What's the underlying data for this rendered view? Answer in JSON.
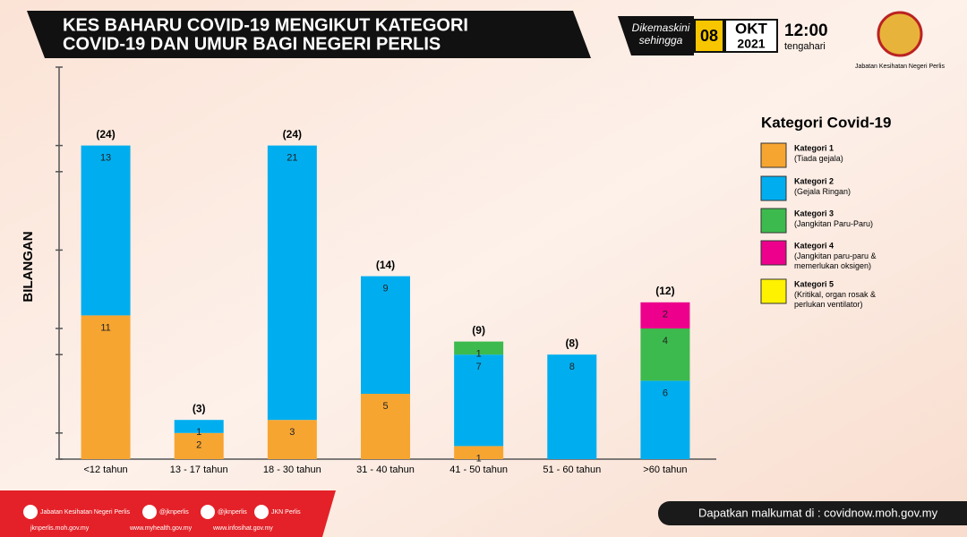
{
  "header": {
    "title_lines": [
      "KES BAHARU COVID-19 MENGIKUT KATEGORI",
      "COVID-19 DAN UMUR BAGI NEGERI PERLIS"
    ],
    "updated_lines": [
      "Dikemaskini",
      "sehingga"
    ],
    "day": "08",
    "month": "OKT",
    "year": "2021",
    "time": "12:00",
    "time_note": "tengahari",
    "agency": "Jabatan Kesihatan Negeri Perlis"
  },
  "chart_data": {
    "type": "stacked_bar",
    "y_label": "BILANGAN",
    "legend_title": "Kategori Covid-19",
    "categories": [
      "<12 tahun",
      "13 - 17 tahun",
      "18 - 30 tahun",
      "31 - 40 tahun",
      "41 - 50 tahun",
      "51 - 60 tahun",
      ">60 tahun"
    ],
    "series": [
      {
        "name": "Kategori 1",
        "description": "(Tiada gejala)",
        "color": "#f7a531",
        "values": [
          11,
          2,
          3,
          5,
          1,
          null,
          null
        ]
      },
      {
        "name": "Kategori 2",
        "description": "(Gejala Ringan)",
        "color": "#00aeef",
        "values": [
          13,
          1,
          21,
          9,
          7,
          8,
          6
        ]
      },
      {
        "name": "Kategori 3",
        "description": "(Jangkitan Paru-Paru)",
        "color": "#3dba4e",
        "values": [
          null,
          null,
          null,
          null,
          1,
          null,
          4
        ]
      },
      {
        "name": "Kategori 4",
        "description": "(Jangkitan paru-paru & memerlukan oksigen)",
        "color": "#ec008c",
        "values": [
          null,
          null,
          null,
          null,
          null,
          null,
          2
        ]
      },
      {
        "name": "Kategori 5",
        "description": "(Kritikal, organ rosak & perlukan ventilator)",
        "color": "#fff200",
        "values": [
          null,
          null,
          null,
          null,
          null,
          null,
          null
        ]
      }
    ],
    "totals": {
      "values": [
        24,
        3,
        24,
        14,
        9,
        8,
        12
      ],
      "value_labels": [
        "(24)",
        "(3)",
        "(24)",
        "(14)",
        "(9)",
        "(8)",
        "(12)"
      ]
    },
    "ylim": [
      0,
      30
    ],
    "yticks": [
      0,
      2,
      8,
      10,
      16,
      22,
      24,
      30
    ]
  },
  "footer": {
    "social": [
      "Jabatan Kesihatan Negeri Perlis",
      "@jknperlis",
      "@jknperlis",
      "JKN Perlis"
    ],
    "websites": [
      "jknperlis.moh.gov.my",
      "www.myhealth.gov.my",
      "www.infosihat.gov.my"
    ],
    "info": "Dapatkan malkumat di : covidnow.moh.gov.my"
  }
}
